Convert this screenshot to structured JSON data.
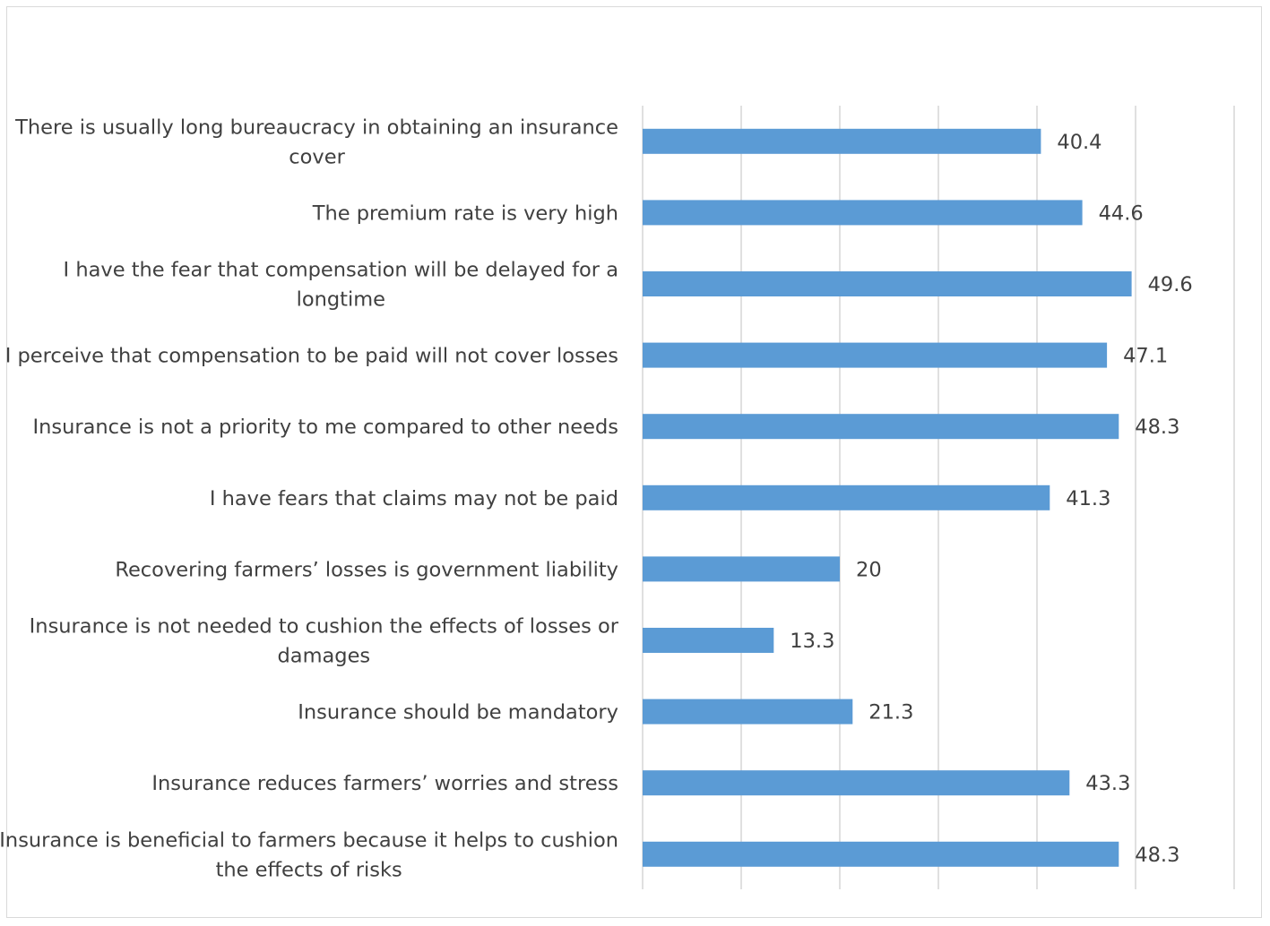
{
  "colors": {
    "bar": "#5b9bd5",
    "grid": "#d9d9d9",
    "text": "#404040",
    "border": "#d9d9d9"
  },
  "chart_data": {
    "type": "bar",
    "orientation": "horizontal",
    "title": "",
    "xlabel": "",
    "ylabel": "",
    "xlim": [
      0,
      60
    ],
    "grid": "vertical",
    "legend": "none",
    "categories": [
      "There is usually long bureaucracy in obtaining an insurance cover",
      "The premium rate is very high",
      "I have the fear that compensation will be delayed for a longtime",
      "I perceive that compensation to be paid will not cover losses",
      "Insurance is not a priority to me compared to other needs",
      "I have fears that claims may not be paid",
      "Recovering farmers’ losses is government liability",
      "Insurance is not needed to cushion the effects of losses or damages",
      "Insurance should be mandatory",
      "Insurance reduces farmers’ worries and stress",
      "Insurance is beneficial to farmers because it helps to cushion the effects of risks"
    ],
    "label_lines": [
      [
        "There is usually long bureaucracy in obtaining an insurance",
        "cover"
      ],
      [
        "The premium rate is very high"
      ],
      [
        "I have the fear that compensation will be delayed for a",
        "longtime"
      ],
      [
        "I perceive that compensation to be paid will not cover losses"
      ],
      [
        "Insurance is not a priority to me compared to other needs"
      ],
      [
        "I have fears that claims may not be paid"
      ],
      [
        "Recovering farmers’ losses is government liability"
      ],
      [
        "Insurance is not needed to cushion the effects of losses or",
        "damages"
      ],
      [
        "Insurance should be mandatory"
      ],
      [
        "Insurance reduces farmers’ worries and stress"
      ],
      [
        "Insurance is beneficial to farmers because it helps to cushion",
        "the effects of risks"
      ]
    ],
    "values": [
      40.4,
      44.6,
      49.6,
      47.1,
      48.3,
      41.3,
      20,
      13.3,
      21.3,
      43.3,
      48.3
    ],
    "value_labels": [
      "40.4",
      "44.6",
      "49.6",
      "47.1",
      "48.3",
      "41.3",
      "20",
      "13.3",
      "21.3",
      "43.3",
      "48.3"
    ]
  }
}
